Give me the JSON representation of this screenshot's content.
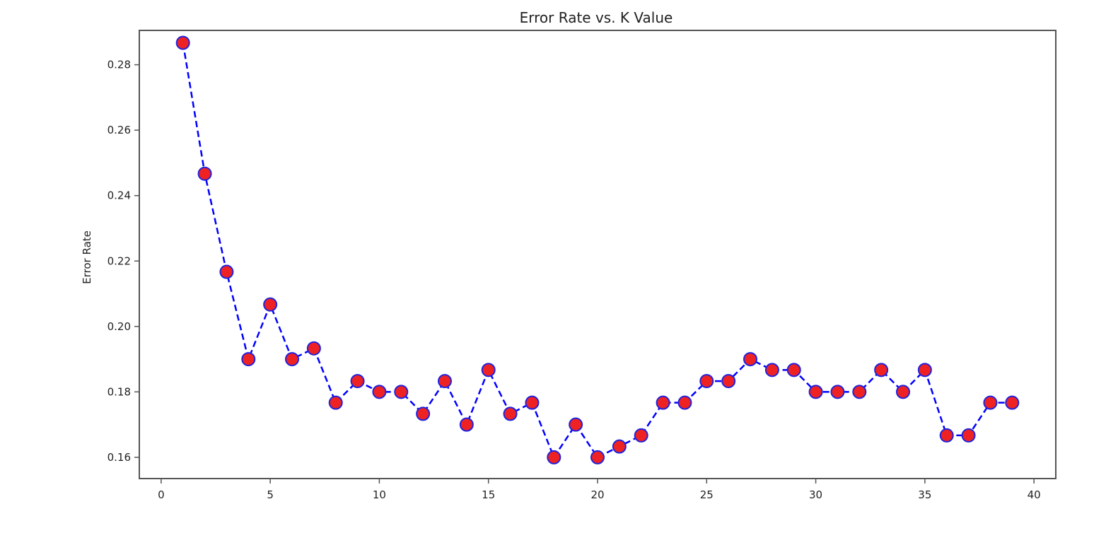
{
  "chart_data": {
    "type": "line",
    "title": "Error Rate vs. K Value",
    "xlabel": "",
    "ylabel": "Error Rate",
    "xlim": [
      -1,
      41
    ],
    "ylim": [
      0.1535,
      0.2905
    ],
    "x_ticks": [
      0,
      5,
      10,
      15,
      20,
      25,
      30,
      35,
      40
    ],
    "y_ticks": [
      0.16,
      0.18,
      0.2,
      0.22,
      0.24,
      0.26,
      0.28
    ],
    "y_tick_labels": [
      "0.16",
      "0.18",
      "0.20",
      "0.22",
      "0.24",
      "0.26",
      "0.28"
    ],
    "grid": false,
    "line_color": "#0000ff",
    "line_style": "dashed",
    "marker_face_color": "#ee2222",
    "marker_edge_color": "#2222dd",
    "x": [
      1,
      2,
      3,
      4,
      5,
      6,
      7,
      8,
      9,
      10,
      11,
      12,
      13,
      14,
      15,
      16,
      17,
      18,
      19,
      20,
      21,
      22,
      23,
      24,
      25,
      26,
      27,
      28,
      29,
      30,
      31,
      32,
      33,
      34,
      35,
      36,
      37,
      38,
      39
    ],
    "y": [
      0.2867,
      0.2467,
      0.2167,
      0.19,
      0.2067,
      0.19,
      0.1933,
      0.1767,
      0.1833,
      0.18,
      0.18,
      0.1733,
      0.1833,
      0.17,
      0.1867,
      0.1733,
      0.1767,
      0.16,
      0.17,
      0.16,
      0.1633,
      0.1667,
      0.1767,
      0.1767,
      0.1833,
      0.1833,
      0.19,
      0.1867,
      0.1867,
      0.18,
      0.18,
      0.18,
      0.1867,
      0.18,
      0.1867,
      0.1667,
      0.1667,
      0.1767,
      0.1767
    ]
  }
}
